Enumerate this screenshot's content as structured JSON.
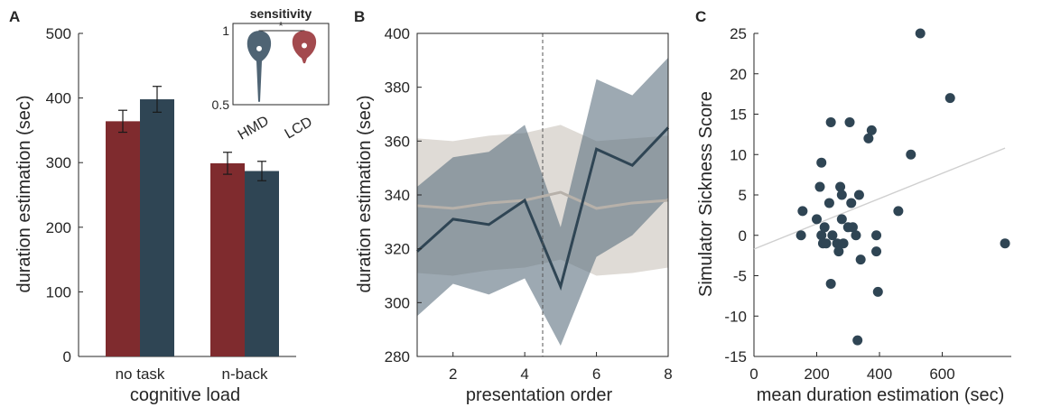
{
  "colors": {
    "hmd": "#2f4554",
    "lcd": "#7f2b2e",
    "band_hmd": "#5b6f7f",
    "band_lcd": "#d9d5cf",
    "line_lcd": "#b7b1aa",
    "fit_line": "#cfcfcf",
    "axis": "#262626"
  },
  "panels": {
    "a": "A",
    "b": "B",
    "c": "C"
  },
  "chart_data": [
    {
      "panel": "A",
      "type": "bar",
      "categories": [
        "no task",
        "n-back"
      ],
      "series": [
        {
          "values": [
            364,
            299
          ],
          "errors": [
            17,
            17
          ]
        },
        {
          "values": [
            398,
            287
          ],
          "errors": [
            20,
            15
          ]
        }
      ],
      "xlabel": "cognitive load",
      "ylabel": "duration estimation (sec)",
      "ylim": [
        0,
        500
      ],
      "yticks": [
        0,
        100,
        200,
        300,
        400,
        500
      ],
      "inset": {
        "type": "violin",
        "title": "sensitivity",
        "categories": [
          "HMD",
          "LCD"
        ],
        "medians": [
          0.88,
          0.9
        ],
        "ylim": [
          0.5,
          1.05
        ],
        "yticks": [
          "0.5",
          "1"
        ],
        "significance": "*"
      }
    },
    {
      "panel": "B",
      "type": "line",
      "x": [
        1,
        2,
        3,
        4,
        5,
        6,
        7,
        8
      ],
      "series": [
        {
          "values": [
            319,
            331,
            329,
            338,
            306,
            357,
            351,
            365
          ],
          "lower": [
            295,
            307,
            303,
            309,
            284,
            317,
            325,
            339
          ],
          "upper": [
            343,
            354,
            356,
            366,
            328,
            383,
            377,
            391
          ]
        },
        {
          "values": [
            336,
            335,
            337,
            338,
            341,
            335,
            337,
            338
          ],
          "lower": [
            311,
            310,
            312,
            313,
            316,
            310,
            311,
            313
          ],
          "upper": [
            361,
            360,
            362,
            363,
            366,
            360,
            361,
            362
          ]
        }
      ],
      "vline": 4.5,
      "xlabel": "presentation order",
      "ylabel": "duration estimation (sec)",
      "xlim": [
        1,
        8
      ],
      "ylim": [
        280,
        400
      ],
      "xticks": [
        2,
        4,
        6,
        8
      ],
      "yticks": [
        280,
        300,
        320,
        340,
        360,
        380,
        400
      ]
    },
    {
      "panel": "C",
      "type": "scatter",
      "points": [
        [
          150,
          0
        ],
        [
          155,
          3
        ],
        [
          200,
          2
        ],
        [
          210,
          6
        ],
        [
          215,
          9
        ],
        [
          215,
          0
        ],
        [
          220,
          -1
        ],
        [
          225,
          1
        ],
        [
          230,
          -1
        ],
        [
          240,
          4
        ],
        [
          245,
          14
        ],
        [
          245,
          -6
        ],
        [
          250,
          0
        ],
        [
          265,
          -1
        ],
        [
          270,
          -2
        ],
        [
          275,
          6
        ],
        [
          280,
          5
        ],
        [
          280,
          2
        ],
        [
          285,
          -1
        ],
        [
          300,
          1
        ],
        [
          305,
          14
        ],
        [
          310,
          4
        ],
        [
          315,
          1
        ],
        [
          325,
          0
        ],
        [
          335,
          5
        ],
        [
          340,
          -3
        ],
        [
          330,
          -13
        ],
        [
          365,
          12
        ],
        [
          375,
          13
        ],
        [
          390,
          -2
        ],
        [
          390,
          0
        ],
        [
          395,
          -7
        ],
        [
          460,
          3
        ],
        [
          500,
          10
        ],
        [
          530,
          25
        ],
        [
          625,
          17
        ],
        [
          800,
          -1
        ]
      ],
      "fit": {
        "x": [
          0,
          800
        ],
        "y": [
          -1.7,
          10.8
        ]
      },
      "xlabel": "mean duration estimation (sec)",
      "ylabel": "Simulator Sickness Score",
      "xlim": [
        0,
        820
      ],
      "ylim": [
        -15,
        25
      ],
      "xticks": [
        0,
        200,
        400,
        600
      ],
      "yticks": [
        -15,
        -10,
        -5,
        0,
        5,
        10,
        15,
        20,
        25
      ]
    }
  ]
}
